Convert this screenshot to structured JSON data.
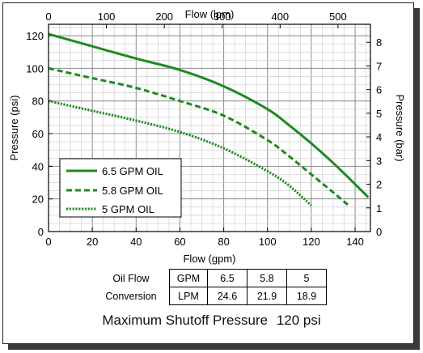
{
  "chart_data": {
    "type": "line",
    "title": "",
    "x_bottom": {
      "label": "Flow (gpm)",
      "min": 0,
      "max": 147,
      "ticks": [
        0,
        20,
        40,
        60,
        80,
        100,
        120,
        140
      ]
    },
    "x_top": {
      "label": "Flow (lpm)",
      "min": 0,
      "max": 556,
      "ticks": [
        0,
        100,
        200,
        300,
        400,
        500
      ]
    },
    "y_left": {
      "label": "Pressure (psi)",
      "min": 0,
      "max": 127,
      "ticks": [
        0,
        20,
        40,
        60,
        80,
        100,
        120
      ]
    },
    "y_right": {
      "label": "Pressure (bar)",
      "min": 0,
      "max": 8.76,
      "ticks": [
        0,
        1,
        2,
        3,
        4,
        5,
        6,
        7,
        8
      ]
    },
    "grid": true,
    "legend_position": "lower-left",
    "series": [
      {
        "name": "6.5 GPM OIL",
        "style": "solid",
        "color": "#1e8a1e",
        "x": [
          0,
          20,
          40,
          60,
          80,
          100,
          110,
          120,
          130,
          140,
          146
        ],
        "y": [
          121,
          113.5,
          106,
          99,
          89,
          75,
          65,
          54,
          42,
          29,
          21
        ]
      },
      {
        "name": "5.8 GPM OIL",
        "style": "dashed",
        "color": "#1e8a1e",
        "x": [
          0,
          20,
          40,
          60,
          80,
          100,
          110,
          120,
          130,
          137
        ],
        "y": [
          100,
          94,
          88,
          80,
          71,
          56,
          46,
          35,
          24,
          16
        ]
      },
      {
        "name": "5 GPM OIL",
        "style": "dotted",
        "color": "#1e8a1e",
        "x": [
          0,
          20,
          40,
          60,
          80,
          100,
          110,
          120
        ],
        "y": [
          80,
          74,
          68,
          61,
          51,
          37,
          28,
          16
        ]
      }
    ]
  },
  "conversion_table": {
    "row1": {
      "lead": "Oil Flow",
      "unit": "GPM",
      "values": [
        "6.5",
        "5.8",
        "5"
      ]
    },
    "row2": {
      "lead": "Conversion",
      "unit": "LPM",
      "values": [
        "24.6",
        "21.9",
        "18.9"
      ]
    }
  },
  "footer": {
    "label": "Maximum Shutoff Pressure",
    "value": "120 psi"
  }
}
